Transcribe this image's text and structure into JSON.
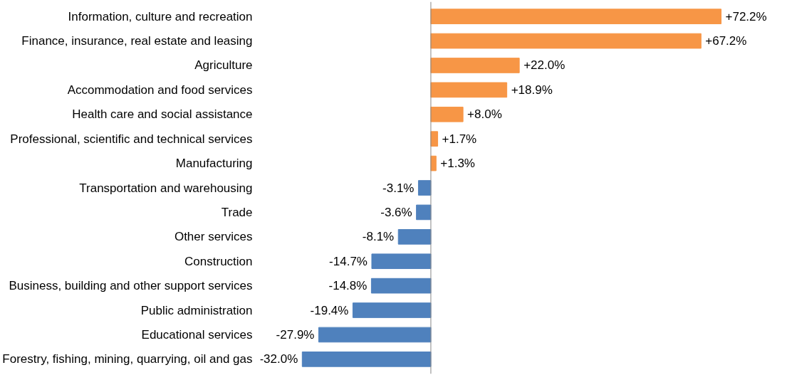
{
  "chart_data": {
    "type": "bar",
    "orientation": "horizontal",
    "categories": [
      "Information, culture and recreation",
      "Finance, insurance, real estate and leasing",
      "Agriculture",
      "Accommodation and food services",
      "Health care and social assistance",
      "Professional, scientific and technical services",
      "Manufacturing",
      "Transportation and warehousing",
      "Trade",
      "Other services",
      "Construction",
      "Business, building and other support services",
      "Public administration",
      "Educational services",
      "Forestry, fishing, mining, quarrying, oil and gas"
    ],
    "values": [
      72.2,
      67.2,
      22.0,
      18.9,
      8.0,
      1.7,
      1.3,
      -3.1,
      -3.6,
      -8.1,
      -14.7,
      -14.8,
      -19.4,
      -27.9,
      -32.0
    ],
    "colors": [
      "#f79646",
      "#f79646",
      "#f79646",
      "#f79646",
      "#f79646",
      "#f79646",
      "#f79646",
      "#4f81bd",
      "#4f81bd",
      "#4f81bd",
      "#4f81bd",
      "#4f81bd",
      "#4f81bd",
      "#4f81bd",
      "#4f81bd"
    ],
    "value_labels": [
      "+72.2%",
      "+67.2%",
      "+22.0%",
      "+18.9%",
      "+8.0%",
      "+1.7%",
      "+1.3%",
      "-3.1%",
      "-3.6%",
      "-8.1%",
      "-14.7%",
      "-14.8%",
      "-19.4%",
      "-27.9%",
      "-32.0%"
    ],
    "grid": false
  }
}
